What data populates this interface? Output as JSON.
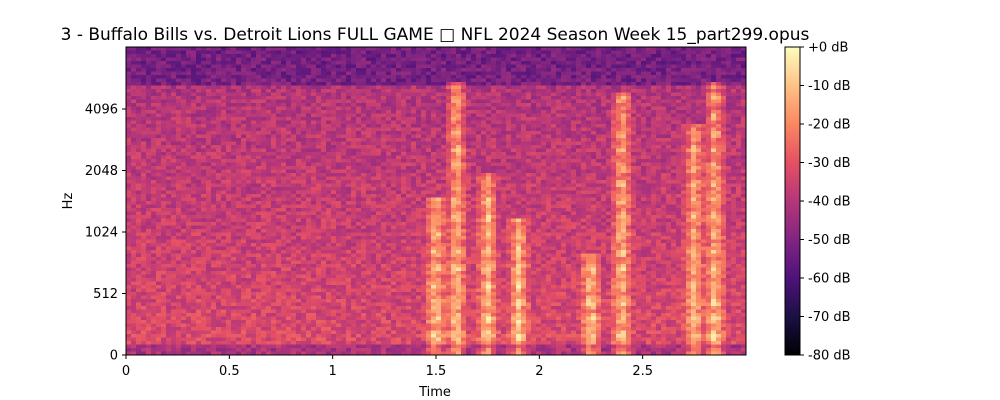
{
  "chart_data": {
    "type": "heatmap",
    "subtype": "spectrogram",
    "title": "3 - Buffalo Bills vs. Detroit Lions FULL GAME □ NFL 2024 Season Week 15_part299.opus",
    "xlabel": "Time",
    "ylabel": "Hz",
    "x_ticks": [
      "0",
      "0.5",
      "1",
      "1.5",
      "2",
      "2.5"
    ],
    "x_tick_values": [
      0,
      0.5,
      1,
      1.5,
      2,
      2.5
    ],
    "xlim": [
      0,
      3.0
    ],
    "y_scale": "symlog",
    "y_ticks": [
      "0",
      "512",
      "1024",
      "2048",
      "4096"
    ],
    "y_tick_values": [
      0,
      512,
      1024,
      2048,
      4096
    ],
    "colorbar": {
      "label_ticks": [
        "+0 dB",
        "-10 dB",
        "-20 dB",
        "-30 dB",
        "-40 dB",
        "-50 dB",
        "-60 dB",
        "-70 dB",
        "-80 dB"
      ],
      "range_db": [
        -80,
        0
      ],
      "colormap": "magma"
    },
    "bright_events": [
      {
        "time": 1.5,
        "freq_max": 1500
      },
      {
        "time": 1.6,
        "freq_max": 5500
      },
      {
        "time": 1.75,
        "freq_max": 2000
      },
      {
        "time": 1.9,
        "freq_max": 1200
      },
      {
        "time": 2.25,
        "freq_max": 800
      },
      {
        "time": 2.4,
        "freq_max": 5000
      },
      {
        "time": 2.75,
        "freq_max": 3500
      },
      {
        "time": 2.85,
        "freq_max": 5500
      }
    ]
  }
}
